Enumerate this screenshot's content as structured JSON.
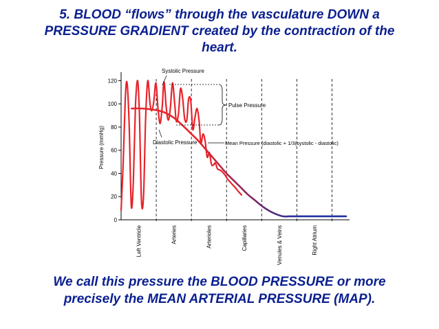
{
  "slide": {
    "title_lines": [
      "5.  BLOOD “flows” through the vasculature DOWN a",
      "PRESSURE GRADIENT created by the contraction of the",
      "heart."
    ],
    "footer_lines": [
      "We call this pressure the BLOOD PRESSURE or more",
      "precisely the MEAN ARTERIAL PRESSURE (MAP)."
    ],
    "text_color": "#0a1f8f"
  },
  "chart_data": {
    "type": "line",
    "ylabel": "Pressure (mmHg)",
    "ylim": [
      0,
      125
    ],
    "yticks": [
      0,
      20,
      40,
      60,
      80,
      100,
      120
    ],
    "yticklabels": [
      "0",
      "20",
      "40",
      "60",
      "80",
      "100",
      "120"
    ],
    "xlim": [
      0,
      6.5
    ],
    "regions": [
      {
        "label": "Left Ventricle",
        "center": 0.5
      },
      {
        "label": "Arteries",
        "center": 1.5
      },
      {
        "label": "Arterioles",
        "center": 2.5
      },
      {
        "label": "Capillaries",
        "center": 3.5
      },
      {
        "label": "Venules & Veins",
        "center": 4.5
      },
      {
        "label": "Right Atrium",
        "center": 5.5
      }
    ],
    "boundaries": [
      1,
      2,
      3,
      4,
      5,
      6
    ],
    "series": [
      {
        "role": "pressure-oscillation",
        "color": "#e8232a",
        "x": [
          0.0,
          0.06,
          0.12,
          0.17,
          0.23,
          0.29,
          0.35,
          0.41,
          0.47,
          0.52,
          0.58,
          0.64,
          0.7,
          0.76,
          0.82,
          0.87,
          0.93,
          0.99,
          1.05,
          1.11,
          1.17,
          1.22,
          1.28,
          1.34,
          1.4,
          1.46,
          1.52,
          1.57,
          1.63,
          1.69,
          1.75,
          1.81,
          1.87,
          1.92,
          1.98,
          2.04,
          2.1,
          2.16,
          2.22,
          2.27,
          2.33,
          2.39,
          2.45,
          2.51,
          2.57,
          2.62,
          2.68,
          2.74,
          2.8,
          2.86,
          2.92,
          2.97,
          3.03,
          3.09,
          3.15,
          3.21,
          3.27,
          3.32,
          3.38,
          3.44
        ],
        "y": [
          8,
          50,
          105,
          118,
          82,
          12,
          35,
          99,
          120,
          92,
          16,
          22,
          90,
          120,
          101,
          94,
          102,
          118,
          96,
          83,
          98,
          119,
          98,
          86,
          96,
          118,
          102,
          85,
          91,
          113,
          105,
          87,
          86,
          104,
          103,
          78,
          88,
          96,
          85,
          66,
          74,
          68,
          54,
          58,
          48,
          47,
          49,
          44,
          43,
          42,
          40,
          38,
          35,
          33,
          31,
          29,
          27,
          25,
          23,
          21
        ]
      },
      {
        "role": "mean-pressure",
        "color_start": "#e8232a",
        "color_end": "#1f2f9e",
        "x": [
          0.3,
          0.6,
          0.9,
          1.2,
          1.5,
          1.8,
          2.0,
          2.2,
          2.4,
          2.6,
          2.8,
          3.0,
          3.2,
          3.4,
          3.6,
          3.8,
          4.0,
          4.2,
          4.4,
          4.6,
          4.8,
          5.0,
          5.5,
          6.0,
          6.4
        ],
        "y": [
          96,
          96,
          95,
          93,
          88,
          80,
          74,
          68,
          61,
          54,
          47,
          40,
          34,
          28,
          22,
          17,
          12,
          8,
          5,
          3,
          3,
          3,
          3,
          3,
          3
        ]
      }
    ],
    "annotations": {
      "systolic": "Systolic Pressure",
      "pulse": "Pulse Pressure",
      "diastolic": "Diastolic Pressure",
      "mean": "Mean Pressure (diastolic + 1/3(systolic - diastolic)"
    },
    "grid": false
  }
}
